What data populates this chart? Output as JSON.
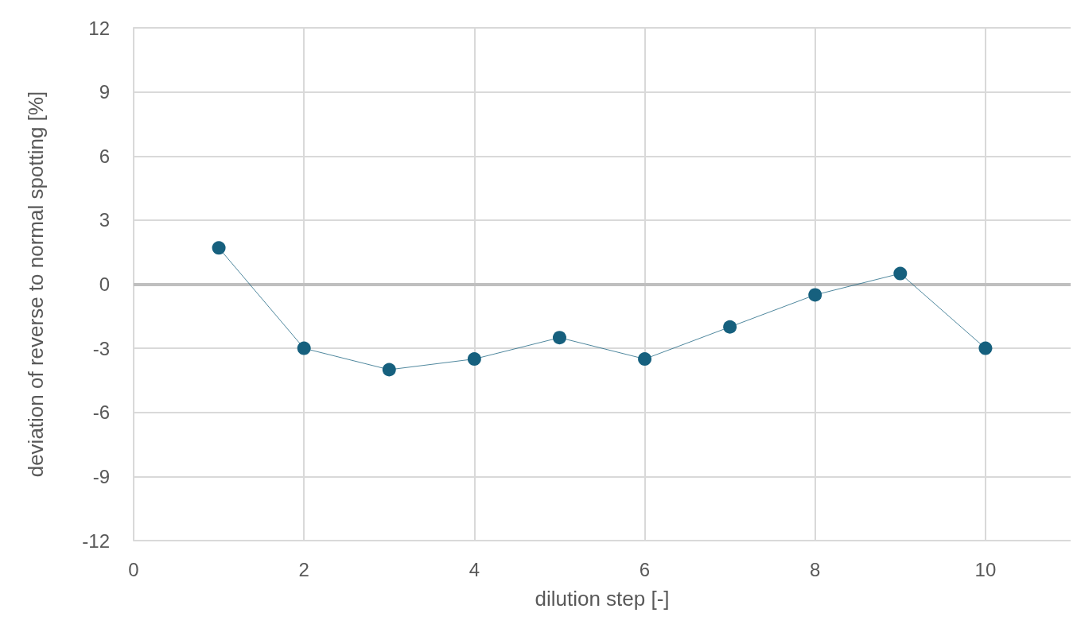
{
  "chart_data": {
    "type": "line",
    "xlabel": "dilution step [-]",
    "ylabel": "deviation of reverse to normal spotting [%]",
    "x": [
      1,
      2,
      3,
      4,
      5,
      6,
      7,
      8,
      9,
      10
    ],
    "series": [
      {
        "color": "#16607e",
        "values": [
          1.7,
          -3,
          -4,
          -3.5,
          -2.5,
          -3.5,
          -2,
          -0.5,
          0.5,
          -3
        ]
      }
    ],
    "xlim": [
      0,
      11
    ],
    "xticks": [
      0,
      2,
      4,
      6,
      8,
      10
    ],
    "ylim": [
      -12,
      12
    ],
    "yticks": [
      -12,
      -9,
      -6,
      -3,
      0,
      3,
      6,
      9,
      12
    ],
    "grid": true,
    "marker": "circle",
    "line_style": "solid",
    "ref_lines": [
      {
        "axis": "y",
        "value": 0,
        "color": "#bfbfbf"
      }
    ]
  }
}
